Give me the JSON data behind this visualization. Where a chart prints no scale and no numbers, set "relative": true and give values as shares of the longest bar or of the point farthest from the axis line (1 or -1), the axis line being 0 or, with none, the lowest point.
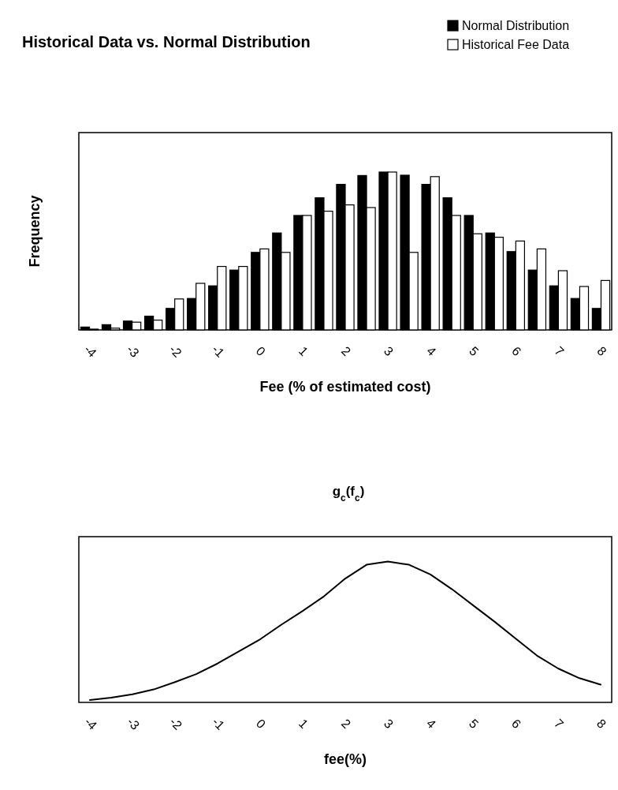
{
  "chart_data": [
    {
      "type": "bar",
      "title": "Historical Data vs. Normal Distribution",
      "xlabel": "Fee (% of estimated cost)",
      "ylabel": "Frequency",
      "relative": true,
      "legend": "top right",
      "categories": [
        "-4",
        null,
        "-3",
        null,
        "-2",
        null,
        "-1",
        null,
        "0",
        null,
        "1",
        null,
        "2",
        null,
        "3",
        null,
        "4",
        null,
        "5",
        null,
        "6",
        null,
        "7",
        null,
        "8"
      ],
      "series": [
        {
          "name": "Normal Distribution",
          "color": "#000000",
          "values": [
            0.018,
            0.033,
            0.056,
            0.087,
            0.136,
            0.199,
            0.279,
            0.379,
            0.491,
            0.614,
            0.725,
            0.837,
            0.922,
            0.978,
            1.0,
            0.98,
            0.922,
            0.837,
            0.725,
            0.614,
            0.496,
            0.379,
            0.279,
            0.199,
            0.136
          ]
        },
        {
          "name": "Historical Fee Data",
          "color": "#ffffff",
          "values": [
            0.005,
            0.011,
            0.049,
            0.062,
            0.196,
            0.295,
            0.402,
            0.402,
            0.513,
            0.491,
            0.725,
            0.752,
            0.792,
            0.775,
            1.0,
            0.491,
            0.971,
            0.725,
            0.609,
            0.587,
            0.563,
            0.513,
            0.375,
            0.275,
            0.313
          ]
        }
      ]
    },
    {
      "type": "line",
      "title": "g$_{c}$(f$_{c}$)",
      "xlabel": "fee(%)",
      "relative": true,
      "marker": "none",
      "categories": [
        "-4",
        null,
        "-3",
        null,
        "-2",
        null,
        "-1",
        null,
        "0",
        null,
        "1",
        null,
        "2",
        null,
        "3",
        null,
        "4",
        null,
        "5",
        null,
        "6",
        null,
        "7",
        null,
        "8"
      ],
      "series": [
        {
          "color": "#000000",
          "values": [
            0.017,
            0.034,
            0.057,
            0.092,
            0.144,
            0.201,
            0.276,
            0.362,
            0.448,
            0.552,
            0.649,
            0.753,
            0.879,
            0.977,
            1.0,
            0.977,
            0.908,
            0.805,
            0.69,
            0.575,
            0.454,
            0.333,
            0.241,
            0.172,
            0.126
          ]
        }
      ]
    }
  ]
}
